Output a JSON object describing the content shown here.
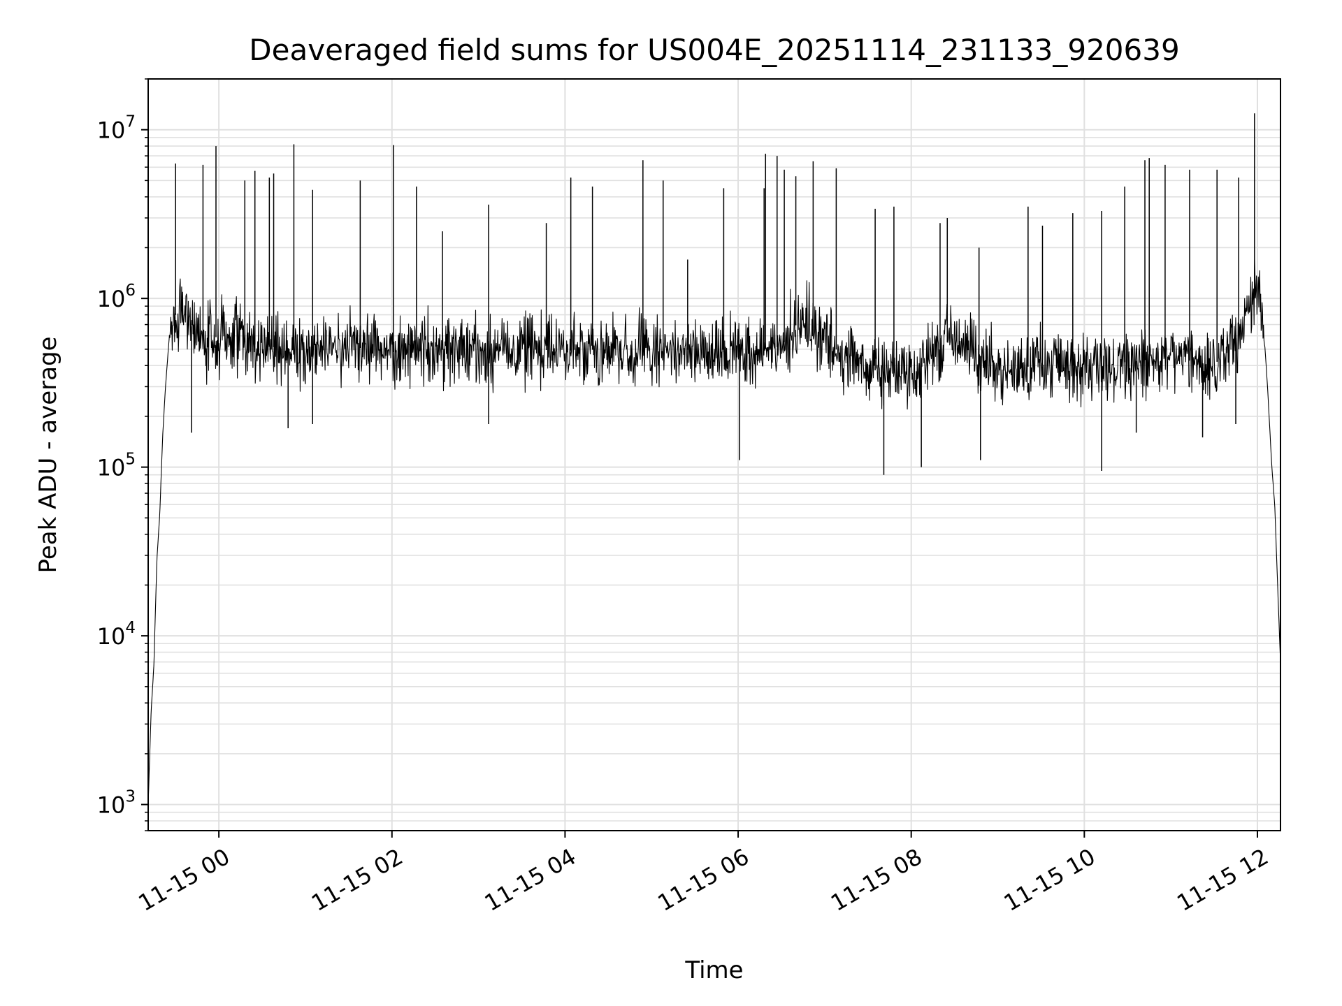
{
  "chart_data": {
    "type": "line",
    "title": "Deaveraged field sums for US004E_20251114_231133_920639",
    "xlabel": "Time",
    "ylabel": "Peak ADU - average",
    "yscale": "log",
    "ylim": [
      700,
      20000000
    ],
    "xlim": [
      "2025-11-14 23:11",
      "2025-11-15 12:16"
    ],
    "grid": true,
    "grid_color": "#e0e0e0",
    "line_color": "#000000",
    "x_ticks": [
      {
        "value": "2025-11-15 00:00",
        "label": "11-15 00"
      },
      {
        "value": "2025-11-15 02:00",
        "label": "11-15 02"
      },
      {
        "value": "2025-11-15 04:00",
        "label": "11-15 04"
      },
      {
        "value": "2025-11-15 06:00",
        "label": "11-15 06"
      },
      {
        "value": "2025-11-15 08:00",
        "label": "11-15 08"
      },
      {
        "value": "2025-11-15 10:00",
        "label": "11-15 10"
      },
      {
        "value": "2025-11-15 12:00",
        "label": "11-15 12"
      }
    ],
    "y_ticks": [
      {
        "value": 1000,
        "base": "10",
        "exp": "3"
      },
      {
        "value": 10000,
        "base": "10",
        "exp": "4"
      },
      {
        "value": 100000,
        "base": "10",
        "exp": "5"
      },
      {
        "value": 1000000,
        "base": "10",
        "exp": "6"
      },
      {
        "value": 10000000,
        "base": "10",
        "exp": "7"
      }
    ],
    "series": [
      {
        "points": [
          [
            "2025-11-14 23:11",
            1000
          ],
          [
            "2025-11-14 23:13",
            3500
          ],
          [
            "2025-11-14 23:15",
            6800
          ],
          [
            "2025-11-14 23:17",
            28000
          ],
          [
            "2025-11-14 23:19",
            52000
          ],
          [
            "2025-11-14 23:21",
            150000
          ],
          [
            "2025-11-14 23:23",
            300000
          ],
          [
            "2025-11-14 23:26",
            650000
          ],
          [
            "2025-11-14 23:30",
            800000
          ],
          [
            "2025-11-14 23:35",
            950000
          ],
          [
            "2025-11-14 23:40",
            700000
          ],
          [
            "2025-11-14 23:50",
            550000
          ],
          [
            "2025-11-15 00:00",
            600000
          ],
          [
            "2025-11-15 00:30",
            520000
          ],
          [
            "2025-11-15 01:00",
            500000
          ],
          [
            "2025-11-15 01:30",
            520000
          ],
          [
            "2025-11-15 02:00",
            480000
          ],
          [
            "2025-11-15 02:30",
            500000
          ],
          [
            "2025-11-15 03:00",
            480000
          ],
          [
            "2025-11-15 03:30",
            500000
          ],
          [
            "2025-11-15 04:00",
            490000
          ],
          [
            "2025-11-15 04:30",
            500000
          ],
          [
            "2025-11-15 05:00",
            480000
          ],
          [
            "2025-11-15 05:30",
            500000
          ],
          [
            "2025-11-15 06:00",
            470000
          ],
          [
            "2025-11-15 06:30",
            520000
          ],
          [
            "2025-11-15 06:45",
            800000
          ],
          [
            "2025-11-15 07:00",
            550000
          ],
          [
            "2025-11-15 07:30",
            380000
          ],
          [
            "2025-11-15 08:00",
            350000
          ],
          [
            "2025-11-15 08:30",
            600000
          ],
          [
            "2025-11-15 09:00",
            380000
          ],
          [
            "2025-11-15 09:30",
            400000
          ],
          [
            "2025-11-15 10:00",
            400000
          ],
          [
            "2025-11-15 10:30",
            420000
          ],
          [
            "2025-11-15 11:00",
            450000
          ],
          [
            "2025-11-15 11:30",
            400000
          ],
          [
            "2025-11-15 11:52",
            700000
          ],
          [
            "2025-11-15 11:58",
            1000000
          ],
          [
            "2025-11-15 12:03",
            1000000
          ],
          [
            "2025-11-15 12:07",
            300000
          ],
          [
            "2025-11-15 12:10",
            100000
          ],
          [
            "2025-11-15 12:12",
            60000
          ],
          [
            "2025-11-15 12:14",
            20000
          ],
          [
            "2025-11-15 12:16",
            7000
          ]
        ],
        "spikes": [
          [
            "2025-11-14 23:30",
            6300000
          ],
          [
            "2025-11-14 23:49",
            6200000
          ],
          [
            "2025-11-14 23:58",
            8000000
          ],
          [
            "2025-11-15 00:18",
            5000000
          ],
          [
            "2025-11-15 00:25",
            5700000
          ],
          [
            "2025-11-15 00:35",
            5200000
          ],
          [
            "2025-11-15 00:38",
            5500000
          ],
          [
            "2025-11-15 00:52",
            8200000
          ],
          [
            "2025-11-15 01:05",
            4400000
          ],
          [
            "2025-11-15 01:38",
            5000000
          ],
          [
            "2025-11-15 02:01",
            8100000
          ],
          [
            "2025-11-15 02:17",
            4600000
          ],
          [
            "2025-11-15 02:35",
            2500000
          ],
          [
            "2025-11-15 03:07",
            3600000
          ],
          [
            "2025-11-15 03:47",
            2800000
          ],
          [
            "2025-11-15 04:04",
            5200000
          ],
          [
            "2025-11-15 04:19",
            4600000
          ],
          [
            "2025-11-15 04:54",
            6600000
          ],
          [
            "2025-11-15 05:08",
            5000000
          ],
          [
            "2025-11-15 05:25",
            1700000
          ],
          [
            "2025-11-15 05:50",
            4500000
          ],
          [
            "2025-11-15 06:18",
            4500000
          ],
          [
            "2025-11-15 06:19",
            7200000
          ],
          [
            "2025-11-15 06:27",
            7000000
          ],
          [
            "2025-11-15 06:32",
            5800000
          ],
          [
            "2025-11-15 06:40",
            5300000
          ],
          [
            "2025-11-15 06:52",
            6500000
          ],
          [
            "2025-11-15 07:08",
            5900000
          ],
          [
            "2025-11-15 07:35",
            3400000
          ],
          [
            "2025-11-15 07:48",
            3500000
          ],
          [
            "2025-11-15 08:20",
            2800000
          ],
          [
            "2025-11-15 08:25",
            3000000
          ],
          [
            "2025-11-15 08:47",
            2000000
          ],
          [
            "2025-11-15 09:21",
            3500000
          ],
          [
            "2025-11-15 09:31",
            2700000
          ],
          [
            "2025-11-15 09:52",
            3200000
          ],
          [
            "2025-11-15 10:12",
            3300000
          ],
          [
            "2025-11-15 10:28",
            4600000
          ],
          [
            "2025-11-15 10:42",
            6600000
          ],
          [
            "2025-11-15 10:45",
            6800000
          ],
          [
            "2025-11-15 10:56",
            6200000
          ],
          [
            "2025-11-15 11:13",
            5800000
          ],
          [
            "2025-11-15 11:32",
            5800000
          ],
          [
            "2025-11-15 11:47",
            5200000
          ],
          [
            "2025-11-15 11:58",
            12500000
          ]
        ],
        "dips": [
          [
            "2025-11-14 23:41",
            160000
          ],
          [
            "2025-11-15 00:48",
            170000
          ],
          [
            "2025-11-15 01:05",
            180000
          ],
          [
            "2025-11-15 03:07",
            180000
          ],
          [
            "2025-11-15 06:01",
            110000
          ],
          [
            "2025-11-15 07:41",
            90000
          ],
          [
            "2025-11-15 08:07",
            100000
          ],
          [
            "2025-11-15 08:48",
            110000
          ],
          [
            "2025-11-15 10:12",
            95000
          ],
          [
            "2025-11-15 10:36",
            160000
          ],
          [
            "2025-11-15 11:22",
            150000
          ],
          [
            "2025-11-15 11:45",
            180000
          ]
        ]
      }
    ]
  }
}
